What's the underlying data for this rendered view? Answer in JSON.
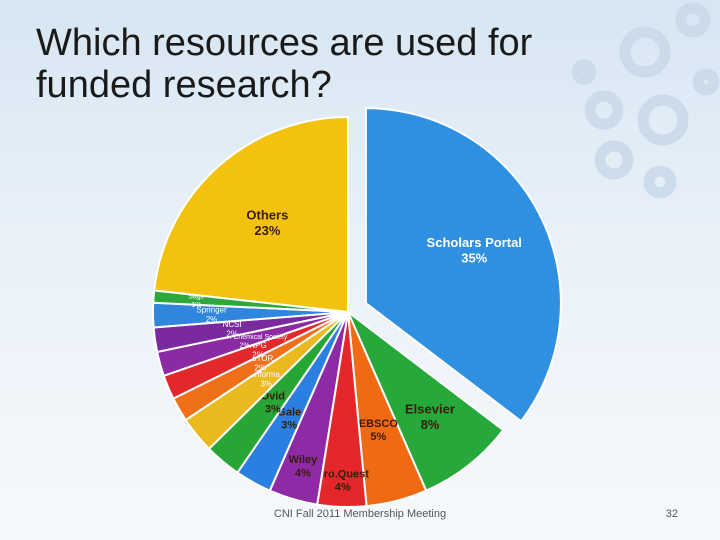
{
  "slide": {
    "title": "Which resources are used for funded research?",
    "footer": "CNI Fall 2011 Membership Meeting",
    "page_number": "32"
  },
  "chart_data": {
    "type": "pie",
    "title": "Which resources are used for funded research?",
    "slices": [
      {
        "label": "Scholars Portal",
        "value": 35,
        "pct": "35%",
        "color": "#2f8fe0",
        "exploded": true
      },
      {
        "label": "Elsevier",
        "value": 8,
        "pct": "8%",
        "color": "#26a83a"
      },
      {
        "label": "EBSCO",
        "value": 5,
        "pct": "5%",
        "color": "#f06a14"
      },
      {
        "label": "Pro.Quest",
        "value": 4,
        "pct": "4%",
        "color": "#e3272b"
      },
      {
        "label": "Wiley",
        "value": 4,
        "pct": "4%",
        "color": "#8e2aa6"
      },
      {
        "label": "Gale",
        "value": 3,
        "pct": "3%",
        "color": "#2a7fe0"
      },
      {
        "label": "Ovid",
        "value": 3,
        "pct": "3%",
        "color": "#28a635"
      },
      {
        "label": "Informa",
        "value": 3,
        "pct": "3%",
        "color": "#e9b91d"
      },
      {
        "label": "JSTOR",
        "value": 2,
        "pct": "2%",
        "color": "#f0701a"
      },
      {
        "label": "NPG",
        "value": 2,
        "pct": "2%",
        "color": "#e3282d"
      },
      {
        "label": "American Chemical Society",
        "value": 2,
        "pct": "2%",
        "color": "#8b2aa3"
      },
      {
        "label": "NCSI",
        "value": 2,
        "pct": "2%",
        "color": "#7a2a9e"
      },
      {
        "label": "Springer",
        "value": 2,
        "pct": "2%",
        "color": "#2f86dc"
      },
      {
        "label": "Sage",
        "value": 1,
        "pct": "1%",
        "color": "#2ea83a"
      },
      {
        "label": "Others",
        "value": 23,
        "pct": "23%",
        "color": "#f2c20f"
      }
    ],
    "legend": "none",
    "labels_on_slices": true
  }
}
